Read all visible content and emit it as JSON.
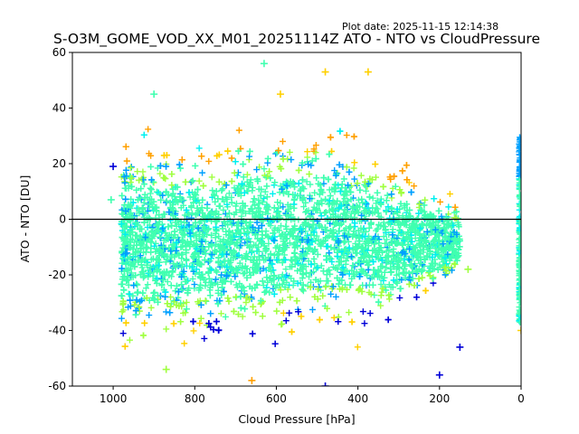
{
  "plot_date": "Plot date: 2025-11-15 12:14:38",
  "chart_data": {
    "type": "scatter",
    "title": "S-O3M_GOME_VOD_XX_M01_20251114Z ATO - NTO vs CloudPressure",
    "xlabel": "Cloud Pressure [hPa]",
    "ylabel": "ATO - NTO [DU]",
    "xlim": [
      1100,
      0
    ],
    "ylim": [
      -60,
      60
    ],
    "x_ticks": [
      1000,
      800,
      600,
      400,
      200,
      0
    ],
    "y_ticks": [
      60,
      40,
      20,
      0,
      -20,
      -40,
      -60
    ],
    "reference_line_y": 0,
    "marker": "+",
    "color_scale": [
      "#0000d8",
      "#00a0ff",
      "#00f0f0",
      "#40ffb0",
      "#a0ff40",
      "#ffd000",
      "#ffa000"
    ],
    "notable_points": [
      {
        "x": 630,
        "y": 56,
        "color": "#40ffb0"
      },
      {
        "x": 480,
        "y": 53,
        "color": "#ffd000"
      },
      {
        "x": 375,
        "y": 53,
        "color": "#ffd000"
      },
      {
        "x": 900,
        "y": 45,
        "color": "#40ffb0"
      },
      {
        "x": 590,
        "y": 45,
        "color": "#ffd000"
      },
      {
        "x": 1000,
        "y": 19,
        "color": "#0000d8"
      },
      {
        "x": 1005,
        "y": 7,
        "color": "#40ffb0"
      },
      {
        "x": 870,
        "y": -54,
        "color": "#a0ff40"
      },
      {
        "x": 660,
        "y": -58,
        "color": "#ffa000"
      },
      {
        "x": 480,
        "y": -60,
        "color": "#0000d8"
      },
      {
        "x": 200,
        "y": -56,
        "color": "#0000d8"
      },
      {
        "x": 150,
        "y": -46,
        "color": "#0000d8"
      },
      {
        "x": 130,
        "y": -18,
        "color": "#a0ff40"
      },
      {
        "x": 0,
        "y": 29,
        "color": "#00a0ff"
      },
      {
        "x": 0,
        "y": -40,
        "color": "#ffd000"
      }
    ]
  }
}
